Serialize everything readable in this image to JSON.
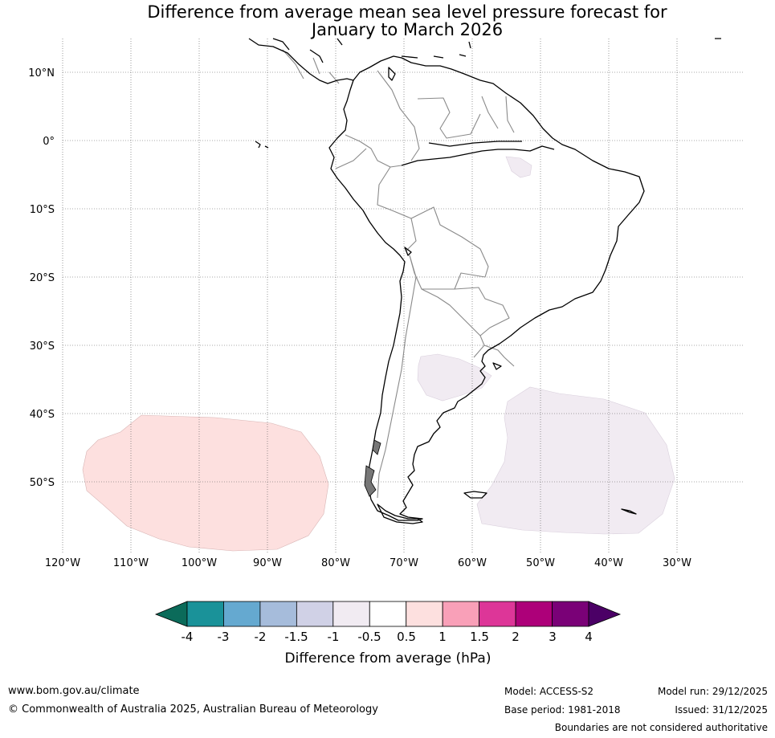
{
  "title": {
    "line1": "Difference from average mean sea level pressure forecast for",
    "line2": "January to March 2026"
  },
  "map": {
    "latitude_labels": [
      "10°N",
      "0°",
      "10°S",
      "20°S",
      "30°S",
      "40°S",
      "50°S"
    ],
    "longitude_labels": [
      "120°W",
      "110°W",
      "100°W",
      "90°W",
      "80°W",
      "70°W",
      "60°W",
      "50°W",
      "40°W",
      "30°W"
    ],
    "anomaly_regions": [
      {
        "name": "southeast-pacific",
        "category": "0.5 to 1",
        "color": "#fde0df"
      },
      {
        "name": "south-atlantic",
        "category": "-1 to -0.5",
        "color": "#f1ebf2"
      },
      {
        "name": "argentina-pampas",
        "category": "-1 to -0.5",
        "color": "#f1ebf2"
      },
      {
        "name": "northeast-brazil",
        "category": "-1 to -0.5",
        "color": "#f1ebf2"
      }
    ]
  },
  "colorbar": {
    "tick_labels": [
      "-4",
      "-3",
      "-2",
      "-1.5",
      "-1",
      "-0.5",
      "0.5",
      "1",
      "1.5",
      "2",
      "3",
      "4"
    ],
    "segment_colors": [
      "#1a9299",
      "#65a9d0",
      "#a6bcdb",
      "#d0d1e6",
      "#f1ebf2",
      "#ffffff",
      "#fde0df",
      "#f9a0b8",
      "#dd3698",
      "#ad0079",
      "#7a0177"
    ],
    "lower_extend_color": "#0b6b5a",
    "upper_extend_color": "#4b0066",
    "label": "Difference from average (hPa)"
  },
  "footer": {
    "website": "www.bom.gov.au/climate",
    "copyright": "© Commonwealth of Australia 2025, Australian Bureau of Meteorology",
    "model": "Model: ACCESS-S2",
    "base_period": "Base period: 1981-2018",
    "model_run": "Model run: 29/12/2025",
    "issued": "Issued: 31/12/2025",
    "disclaimer": "Boundaries are not considered authoritative"
  }
}
